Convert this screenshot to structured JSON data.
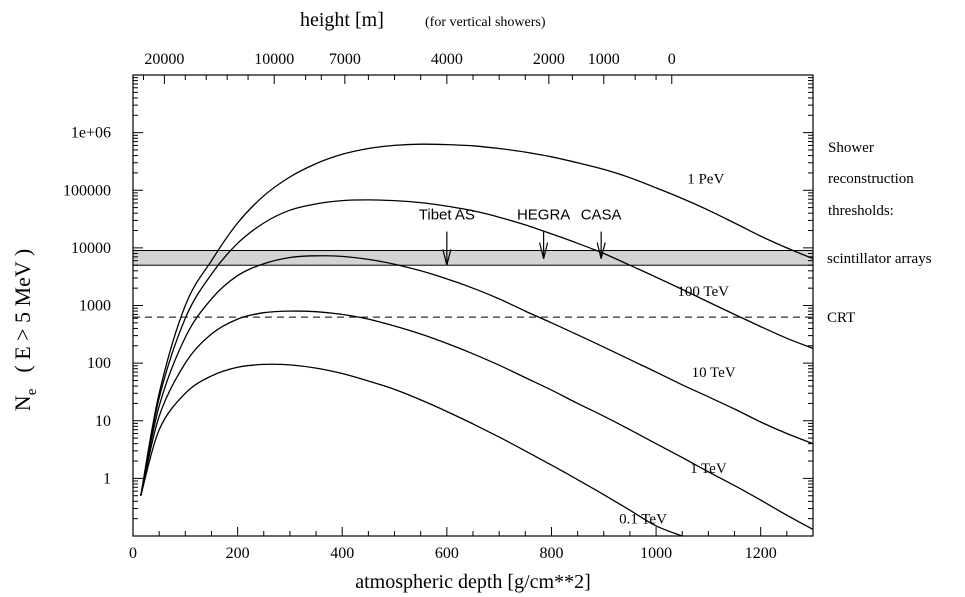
{
  "chart_data": {
    "type": "line",
    "title": "",
    "xlabel": "atmospheric depth [g/cm**2]",
    "ylabel_main": "N",
    "ylabel_sub": "e",
    "ylabel_rest": "( E > 5 MeV )",
    "xlim": [
      0,
      1300
    ],
    "ylog": true,
    "ylim": [
      0.1,
      10000000
    ],
    "x_ticks": [
      0,
      200,
      400,
      600,
      800,
      1000,
      1200
    ],
    "x_tick_labels": [
      "0",
      "200",
      "400",
      "600",
      "800",
      "1000",
      "1200"
    ],
    "y_ticks": [
      1,
      10,
      100,
      1000,
      10000,
      100000,
      1000000
    ],
    "y_tick_labels": [
      "1",
      "10",
      "100",
      "1000",
      "10000",
      "100000",
      "1e+06"
    ],
    "top_axis": {
      "title": "height [m]",
      "note": "(for vertical showers)",
      "ticks": [
        {
          "label": "20000",
          "depth": 60
        },
        {
          "label": "10000",
          "depth": 270
        },
        {
          "label": "7000",
          "depth": 405
        },
        {
          "label": "4000",
          "depth": 600
        },
        {
          "label": "2000",
          "depth": 795
        },
        {
          "label": "1000",
          "depth": 900
        },
        {
          "label": "0",
          "depth": 1030
        }
      ]
    },
    "series": [
      {
        "name": "1 PeV",
        "label_at": [
          1095,
          160000
        ],
        "x": [
          15,
          50,
          100,
          150,
          200,
          250,
          300,
          350,
          400,
          450,
          500,
          550,
          600,
          650,
          700,
          750,
          800,
          850,
          900,
          950,
          1000,
          1050,
          1100,
          1150,
          1200,
          1250,
          1300
        ],
        "y": [
          0.5,
          30,
          1000,
          6000,
          27000,
          80000,
          170000,
          290000,
          420000,
          530000,
          600000,
          630000,
          620000,
          590000,
          530000,
          460000,
          380000,
          300000,
          230000,
          165000,
          110000,
          72000,
          45000,
          27000,
          16000,
          10000,
          6500
        ]
      },
      {
        "name": "100 TeV",
        "label_at": [
          1090,
          1800
        ],
        "x": [
          15,
          50,
          100,
          150,
          200,
          250,
          300,
          350,
          400,
          450,
          500,
          550,
          600,
          650,
          700,
          750,
          800,
          850,
          900,
          950,
          1000,
          1050,
          1100,
          1150,
          1200,
          1250,
          1300
        ],
        "y": [
          0.5,
          25,
          600,
          3500,
          12000,
          27000,
          45000,
          58000,
          66000,
          68000,
          66000,
          61000,
          53000,
          44000,
          34000,
          25000,
          17500,
          12000,
          8000,
          5000,
          3100,
          1900,
          1150,
          700,
          430,
          270,
          180
        ]
      },
      {
        "name": "10 TeV",
        "label_at": [
          1110,
          70
        ],
        "x": [
          15,
          50,
          100,
          150,
          200,
          250,
          300,
          350,
          400,
          450,
          500,
          550,
          600,
          650,
          700,
          750,
          800,
          850,
          900,
          950,
          1000,
          1050,
          1100,
          1150,
          1200,
          1250,
          1300
        ],
        "y": [
          0.5,
          18,
          280,
          1300,
          3300,
          5300,
          6800,
          7300,
          7100,
          6300,
          5200,
          4000,
          2900,
          2000,
          1300,
          800,
          500,
          310,
          190,
          115,
          70,
          42,
          26,
          16,
          9.5,
          6,
          4
        ]
      },
      {
        "name": "1 TeV",
        "label_at": [
          1100,
          1.5
        ],
        "x": [
          15,
          50,
          100,
          150,
          200,
          250,
          300,
          350,
          400,
          450,
          500,
          550,
          600,
          650,
          700,
          750,
          800,
          850,
          900,
          950,
          1000,
          1050,
          1100,
          1150,
          1200,
          1250,
          1300
        ],
        "y": [
          0.5,
          12,
          100,
          320,
          580,
          750,
          800,
          780,
          700,
          580,
          440,
          320,
          220,
          145,
          92,
          56,
          34,
          20,
          12,
          7,
          4,
          2.3,
          1.3,
          0.75,
          0.42,
          0.23,
          0.13
        ]
      },
      {
        "name": "0.1 TeV",
        "label_at": [
          975,
          0.2
        ],
        "x": [
          15,
          50,
          100,
          150,
          200,
          250,
          300,
          350,
          400,
          450,
          500,
          550,
          600,
          650,
          700,
          750,
          800,
          850,
          900,
          950,
          1000,
          1050,
          1080
        ],
        "y": [
          0.5,
          7,
          30,
          60,
          85,
          95,
          93,
          82,
          66,
          49,
          35,
          23,
          14.5,
          8.8,
          5.2,
          3,
          1.7,
          0.95,
          0.52,
          0.28,
          0.15,
          0.1,
          0.08
        ]
      }
    ],
    "band": {
      "label": "scintillator arrays",
      "y_low": 5000,
      "y_high": 9000,
      "color": "#d3d3d3"
    },
    "crt_line": {
      "label": "CRT",
      "y": 630
    },
    "arrows": [
      {
        "label": "Tibet AS",
        "x": 600,
        "y_from": 50000,
        "y_to": 5000
      },
      {
        "label": "HEGRA",
        "x": 785,
        "y_from": 50000,
        "y_to": 6500
      },
      {
        "label": "CASA",
        "x": 895,
        "y_from": 50000,
        "y_to": 6500
      }
    ],
    "right_labels": {
      "line1": "Shower",
      "line2": "reconstruction",
      "line3": "thresholds:"
    }
  }
}
